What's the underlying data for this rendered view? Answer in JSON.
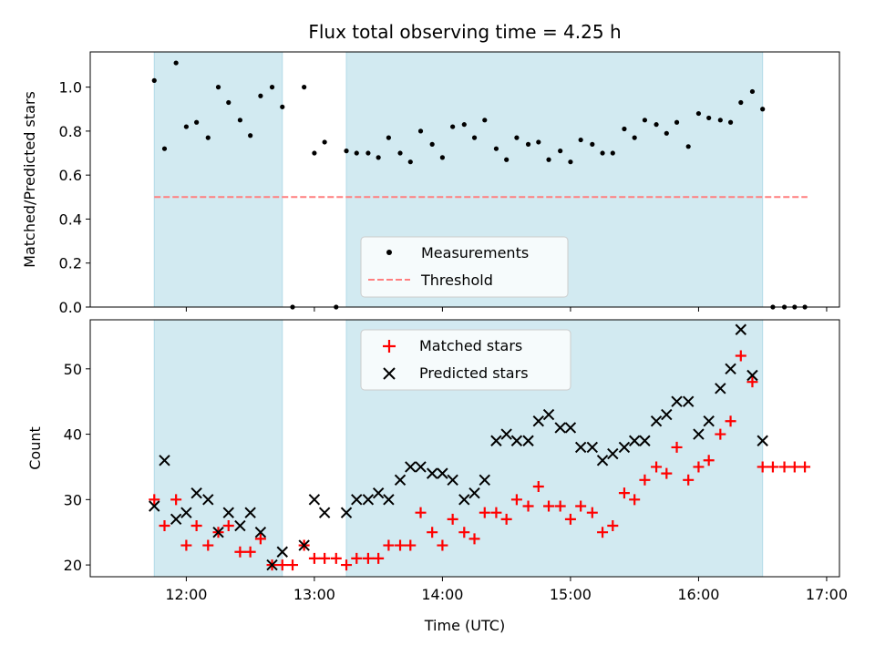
{
  "chart_data": {
    "title": "Flux total observing time = 4.25 h",
    "xlabel": "Time (UTC)",
    "x_unit": "hours UTC (decimal)",
    "xlim": [
      11.25,
      17.1
    ],
    "xticks": [
      {
        "value": 12,
        "label": "12:00"
      },
      {
        "value": 13,
        "label": "13:00"
      },
      {
        "value": 14,
        "label": "14:00"
      },
      {
        "value": 15,
        "label": "15:00"
      },
      {
        "value": 16,
        "label": "16:00"
      },
      {
        "value": 17,
        "label": "17:00"
      }
    ],
    "observing_windows": [
      [
        11.75,
        12.75
      ],
      [
        13.25,
        16.5
      ]
    ],
    "colors": {
      "window": "#add8e6",
      "measurement": "#000000",
      "threshold": "#ff7f7f",
      "matched": "#ff0000",
      "predicted": "#000000"
    },
    "top": {
      "type": "scatter",
      "ylabel": "Matched/Predicted stars",
      "ylim": [
        0,
        1.16
      ],
      "yticks": [
        {
          "value": 0,
          "label": "0.0"
        },
        {
          "value": 0.2,
          "label": "0.2"
        },
        {
          "value": 0.4,
          "label": "0.4"
        },
        {
          "value": 0.6,
          "label": "0.6"
        },
        {
          "value": 0.8,
          "label": "0.8"
        },
        {
          "value": 1.0,
          "label": "1.0"
        }
      ],
      "threshold": {
        "value": 0.5,
        "x_range": [
          11.75,
          16.85
        ],
        "label": "Threshold"
      },
      "measurements": {
        "label": "Measurements",
        "x": [
          11.75,
          11.83,
          11.92,
          12.0,
          12.08,
          12.17,
          12.25,
          12.33,
          12.42,
          12.5,
          12.58,
          12.67,
          12.75,
          12.83,
          12.92,
          13.0,
          13.08,
          13.17,
          13.25,
          13.33,
          13.42,
          13.5,
          13.58,
          13.67,
          13.75,
          13.83,
          13.92,
          14.0,
          14.08,
          14.17,
          14.25,
          14.33,
          14.42,
          14.5,
          14.58,
          14.67,
          14.75,
          14.83,
          14.92,
          15.0,
          15.08,
          15.17,
          15.25,
          15.33,
          15.42,
          15.5,
          15.58,
          15.67,
          15.75,
          15.83,
          15.92,
          16.0,
          16.08,
          16.17,
          16.25,
          16.33,
          16.42,
          16.5,
          16.58,
          16.67,
          16.75,
          16.83
        ],
        "y": [
          1.03,
          0.72,
          1.11,
          0.82,
          0.84,
          0.77,
          1.0,
          0.93,
          0.85,
          0.78,
          0.96,
          1.0,
          0.91,
          0.0,
          1.0,
          0.7,
          0.75,
          0.0,
          0.71,
          0.7,
          0.7,
          0.68,
          0.77,
          0.7,
          0.66,
          0.8,
          0.74,
          0.68,
          0.82,
          0.83,
          0.77,
          0.85,
          0.72,
          0.67,
          0.77,
          0.74,
          0.75,
          0.67,
          0.71,
          0.66,
          0.76,
          0.74,
          0.7,
          0.7,
          0.81,
          0.77,
          0.85,
          0.83,
          0.79,
          0.84,
          0.73,
          0.88,
          0.86,
          0.85,
          0.84,
          0.93,
          0.98,
          0.9,
          0.0,
          0.0,
          0.0,
          0.0
        ]
      },
      "legend": {
        "placement": "lower-center"
      }
    },
    "bottom": {
      "type": "scatter",
      "ylabel": "Count",
      "ylim": [
        18.2,
        57.5
      ],
      "yticks": [
        {
          "value": 20,
          "label": "20"
        },
        {
          "value": 30,
          "label": "30"
        },
        {
          "value": 40,
          "label": "40"
        },
        {
          "value": 50,
          "label": "50"
        }
      ],
      "series": [
        {
          "name": "Matched stars",
          "marker": "plus",
          "x": [
            11.75,
            11.83,
            11.92,
            12.0,
            12.08,
            12.17,
            12.25,
            12.33,
            12.42,
            12.5,
            12.58,
            12.67,
            12.75,
            12.83,
            12.92,
            13.0,
            13.08,
            13.17,
            13.25,
            13.33,
            13.42,
            13.5,
            13.58,
            13.67,
            13.75,
            13.83,
            13.92,
            14.0,
            14.08,
            14.17,
            14.25,
            14.33,
            14.42,
            14.5,
            14.58,
            14.67,
            14.75,
            14.83,
            14.92,
            15.0,
            15.08,
            15.17,
            15.25,
            15.33,
            15.42,
            15.5,
            15.58,
            15.67,
            15.75,
            15.83,
            15.92,
            16.0,
            16.08,
            16.17,
            16.25,
            16.33,
            16.42,
            16.5,
            16.58,
            16.67,
            16.75,
            16.83
          ],
          "y": [
            30,
            26,
            30,
            23,
            26,
            23,
            25,
            26,
            22,
            22,
            24,
            20,
            20,
            20,
            23,
            21,
            21,
            21,
            20,
            21,
            21,
            21,
            23,
            23,
            23,
            28,
            25,
            23,
            27,
            25,
            24,
            28,
            28,
            27,
            30,
            29,
            32,
            29,
            29,
            27,
            29,
            28,
            25,
            26,
            31,
            30,
            33,
            35,
            34,
            38,
            33,
            35,
            36,
            40,
            42,
            52,
            48,
            35,
            35,
            35,
            35,
            35
          ]
        },
        {
          "name": "Predicted stars",
          "marker": "x",
          "x": [
            11.75,
            11.83,
            11.92,
            12.0,
            12.08,
            12.17,
            12.25,
            12.33,
            12.42,
            12.5,
            12.58,
            12.67,
            12.75,
            12.92,
            13.0,
            13.08,
            13.25,
            13.33,
            13.42,
            13.5,
            13.58,
            13.67,
            13.75,
            13.83,
            13.92,
            14.0,
            14.08,
            14.17,
            14.25,
            14.33,
            14.42,
            14.5,
            14.58,
            14.67,
            14.75,
            14.83,
            14.92,
            15.0,
            15.08,
            15.17,
            15.25,
            15.33,
            15.42,
            15.5,
            15.58,
            15.67,
            15.75,
            15.83,
            15.92,
            16.0,
            16.08,
            16.17,
            16.25,
            16.33,
            16.42,
            16.5
          ],
          "y": [
            29,
            36,
            27,
            28,
            31,
            30,
            25,
            28,
            26,
            28,
            25,
            20,
            22,
            23,
            30,
            28,
            28,
            30,
            30,
            31,
            30,
            33,
            35,
            35,
            34,
            34,
            33,
            30,
            31,
            33,
            39,
            40,
            39,
            39,
            42,
            43,
            41,
            41,
            38,
            38,
            36,
            37,
            38,
            39,
            39,
            42,
            43,
            45,
            45,
            40,
            42,
            47,
            50,
            56,
            49,
            39
          ]
        }
      ],
      "legend": {
        "placement": "upper-center"
      }
    }
  }
}
